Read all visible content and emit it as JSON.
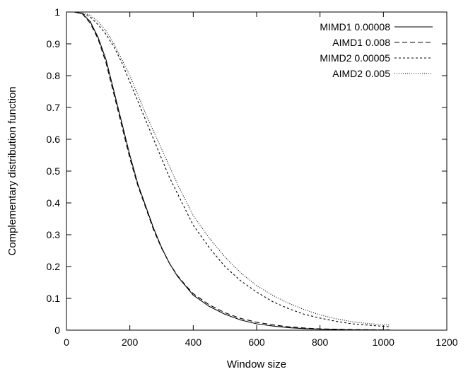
{
  "chart_data": {
    "type": "line",
    "title": "",
    "xlabel": "Window size",
    "ylabel": "Complementary distribution function",
    "xlim": [
      0,
      1200
    ],
    "ylim": [
      0,
      1
    ],
    "xticks": [
      0,
      200,
      400,
      600,
      800,
      1000,
      1200
    ],
    "yticks": [
      0,
      0.1,
      0.2,
      0.3,
      0.4,
      0.5,
      0.6,
      0.7,
      0.8,
      0.9,
      1
    ],
    "grid": false,
    "legend_position": "top-right",
    "series": [
      {
        "name": "MIMD1 0.00008",
        "style": "solid",
        "x": [
          25,
          50,
          75,
          100,
          125,
          150,
          175,
          200,
          225,
          250,
          275,
          300,
          325,
          350,
          375,
          400,
          450,
          500,
          550,
          600,
          650,
          700,
          750,
          800,
          850,
          900,
          950,
          1000,
          1020
        ],
        "y": [
          1.0,
          0.995,
          0.97,
          0.92,
          0.85,
          0.75,
          0.65,
          0.55,
          0.46,
          0.39,
          0.32,
          0.26,
          0.21,
          0.17,
          0.14,
          0.11,
          0.075,
          0.05,
          0.032,
          0.02,
          0.013,
          0.008,
          0.005,
          0.003,
          0.002,
          0.001,
          0.0008,
          0.0005,
          0.0004
        ]
      },
      {
        "name": "AIMD1 0.008",
        "style": "long-dash",
        "x": [
          25,
          50,
          75,
          100,
          125,
          150,
          175,
          200,
          225,
          250,
          275,
          300,
          325,
          350,
          375,
          400,
          450,
          500,
          550,
          600,
          650,
          700,
          750,
          800,
          850,
          900,
          950,
          1000,
          1020
        ],
        "y": [
          1.0,
          0.995,
          0.965,
          0.915,
          0.84,
          0.74,
          0.64,
          0.54,
          0.455,
          0.385,
          0.315,
          0.258,
          0.21,
          0.172,
          0.142,
          0.115,
          0.08,
          0.055,
          0.037,
          0.025,
          0.017,
          0.011,
          0.007,
          0.004,
          0.003,
          0.002,
          0.0015,
          0.001,
          0.001
        ]
      },
      {
        "name": "MIMD2 0.00005",
        "style": "short-dash",
        "x": [
          25,
          50,
          75,
          100,
          125,
          150,
          175,
          200,
          225,
          250,
          275,
          300,
          325,
          350,
          375,
          400,
          450,
          500,
          550,
          600,
          650,
          700,
          750,
          800,
          850,
          900,
          950,
          1000,
          1020
        ],
        "y": [
          1.0,
          0.995,
          0.985,
          0.96,
          0.93,
          0.89,
          0.84,
          0.78,
          0.72,
          0.66,
          0.6,
          0.54,
          0.48,
          0.43,
          0.38,
          0.33,
          0.26,
          0.2,
          0.155,
          0.12,
          0.09,
          0.068,
          0.05,
          0.038,
          0.028,
          0.02,
          0.016,
          0.012,
          0.011
        ]
      },
      {
        "name": "AIMD2 0.005",
        "style": "dotted",
        "x": [
          25,
          50,
          75,
          100,
          125,
          150,
          175,
          200,
          225,
          250,
          275,
          300,
          325,
          350,
          375,
          400,
          450,
          500,
          550,
          600,
          650,
          700,
          750,
          800,
          850,
          900,
          950,
          1000,
          1020
        ],
        "y": [
          1.0,
          0.997,
          0.99,
          0.97,
          0.94,
          0.9,
          0.85,
          0.8,
          0.74,
          0.68,
          0.625,
          0.57,
          0.515,
          0.46,
          0.41,
          0.36,
          0.29,
          0.23,
          0.18,
          0.14,
          0.11,
          0.085,
          0.065,
          0.048,
          0.036,
          0.027,
          0.021,
          0.017,
          0.016
        ]
      }
    ]
  }
}
